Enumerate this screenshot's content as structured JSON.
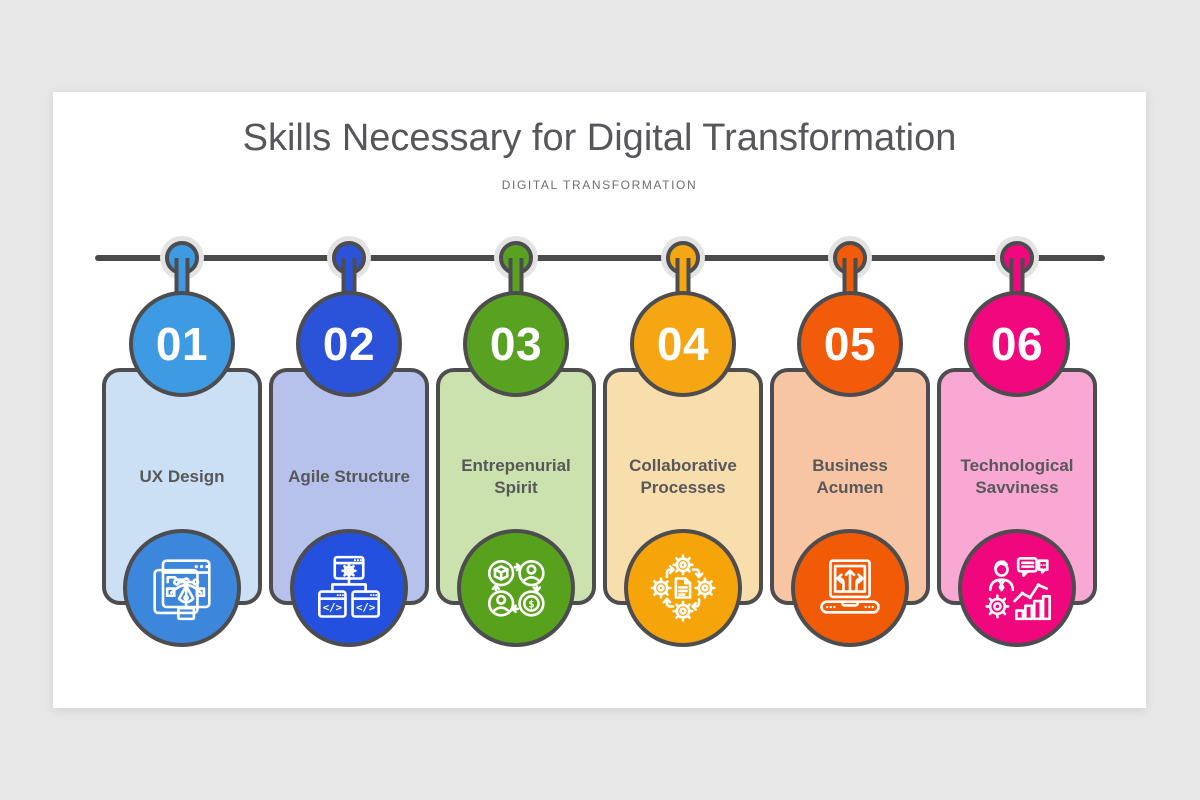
{
  "title": "Skills Necessary for Digital Transformation",
  "subtitle": "DIGITAL TRANSFORMATION",
  "colors": {
    "page_background": "#E8E7E7",
    "slide_background": "#FFFFFF",
    "timeline": "#4A4A4C",
    "outline": "#4D4D4F",
    "title_text": "#56575A",
    "subtitle_text": "#6D6E70",
    "label_text": "#58585A",
    "number_text": "#FFFFFF"
  },
  "items": [
    {
      "number": "01",
      "label": "UX Design",
      "icon": "vector-design-icon",
      "accent": "#3E9AE2",
      "card_bg": "#CBDFF5",
      "icon_bg": "#3C86DB"
    },
    {
      "number": "02",
      "label": "Agile Structure",
      "icon": "code-structure-icon",
      "accent": "#2B53DA",
      "card_bg": "#B7C2EC",
      "icon_bg": "#2350DE"
    },
    {
      "number": "03",
      "label": "Entrepenurial Spirit",
      "icon": "business-cycle-icon",
      "accent": "#59A120",
      "card_bg": "#CBE2AE",
      "icon_bg": "#58A11C"
    },
    {
      "number": "04",
      "label": "Collaborative Processes",
      "icon": "process-gears-icon",
      "accent": "#F6A513",
      "card_bg": "#F8DDAD",
      "icon_bg": "#F5A40A"
    },
    {
      "number": "05",
      "label": "Business Acumen",
      "icon": "strategy-laptop-icon",
      "accent": "#F25B0A",
      "card_bg": "#F7C5A3",
      "icon_bg": "#F15B06"
    },
    {
      "number": "06",
      "label": "Technological Savviness",
      "icon": "analytics-person-icon",
      "accent": "#F2087E",
      "card_bg": "#F8A8D2",
      "icon_bg": "#F1077D"
    }
  ]
}
